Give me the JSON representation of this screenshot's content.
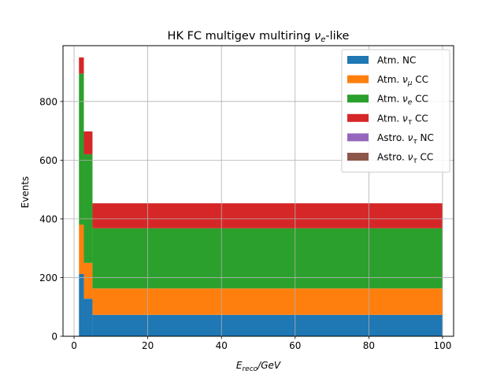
{
  "chart_data": {
    "type": "bar",
    "stacked": true,
    "title": "HK FC multigev multiring ν_e-like",
    "xlabel": "E_reco/GeV",
    "ylabel": "Events",
    "xlim": [
      -3,
      103
    ],
    "ylim": [
      0,
      990
    ],
    "x_ticks": [
      0,
      20,
      40,
      60,
      80,
      100
    ],
    "y_ticks": [
      0,
      200,
      400,
      600,
      800
    ],
    "grid": true,
    "legend_position": "top-right",
    "bin_edges": [
      1.33,
      2.66,
      5.0,
      100.0
    ],
    "series": [
      {
        "name": "Atm. NC",
        "label_base": "Atm. NC",
        "label_sub": "",
        "label_suffix": "",
        "color": "#1f77b4",
        "values": [
          212,
          128,
          73
        ]
      },
      {
        "name": "Atm. ν_μ CC",
        "label_base": "Atm. ν",
        "label_sub": "μ",
        "label_suffix": " CC",
        "color": "#ff7f0e",
        "values": [
          168,
          122,
          90
        ]
      },
      {
        "name": "Atm. ν_e CC",
        "label_base": "Atm. ν",
        "label_sub": "e",
        "label_suffix": " CC",
        "color": "#2ca02c",
        "values": [
          515,
          370,
          205
        ]
      },
      {
        "name": "Atm. ν_τ CC",
        "label_base": "Atm. ν",
        "label_sub": "τ",
        "label_suffix": " CC",
        "color": "#d62728",
        "values": [
          55,
          78,
          85
        ]
      },
      {
        "name": "Astro. ν_τ NC",
        "label_base": "Astro. ν",
        "label_sub": "τ",
        "label_suffix": " NC",
        "color": "#9467bd",
        "values": [
          0,
          0,
          0
        ]
      },
      {
        "name": "Astro. ν_τ CC",
        "label_base": "Astro. ν",
        "label_sub": "τ",
        "label_suffix": " CC",
        "color": "#8c564b",
        "values": [
          0,
          0,
          0
        ]
      }
    ]
  }
}
